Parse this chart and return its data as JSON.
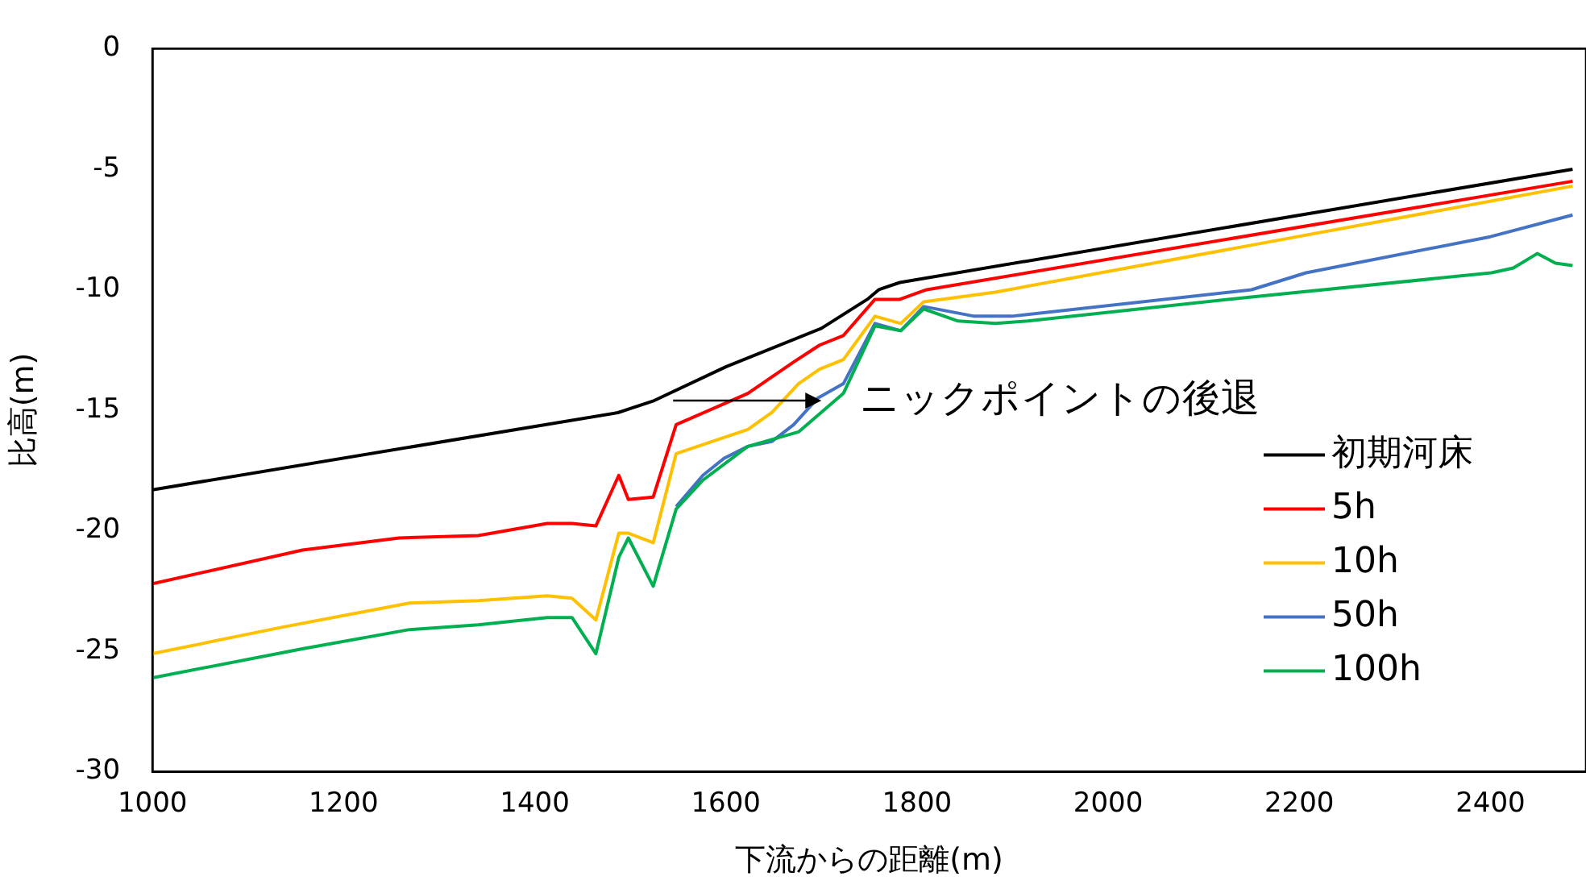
{
  "chart_data": {
    "type": "line",
    "xlabel": "下流からの距離(m)",
    "ylabel": "比高(m)",
    "xlim": [
      1000,
      2500
    ],
    "xticks": [
      1000,
      1200,
      1400,
      1600,
      1800,
      2000,
      2200,
      2400
    ],
    "ylim": [
      -30,
      0
    ],
    "yticks": [
      -30,
      -25,
      -20,
      -15,
      -10,
      -5,
      0
    ],
    "grid": false,
    "legend": "right",
    "marker": "none",
    "line_style": "solid",
    "annotations": [
      {
        "text": "ニックポイントの後退",
        "x": 1700,
        "y": -14.6
      }
    ],
    "series": [
      {
        "name": "初期河床",
        "color": "#000000",
        "x": [
          1000,
          1487,
          1525,
          1600,
          1700,
          1748,
          1760,
          1782,
          2486
        ],
        "values": [
          -18.3,
          -15.1,
          -14.6,
          -13.2,
          -11.6,
          -10.4,
          -10.0,
          -9.7,
          -5.0
        ]
      },
      {
        "name": "5h",
        "color": "#ff0000",
        "x": [
          1000,
          1157,
          1258,
          1341,
          1413,
          1439,
          1464,
          1488,
          1498,
          1524,
          1548,
          1623,
          1671,
          1698,
          1723,
          1756,
          1782,
          1810,
          2486
        ],
        "values": [
          -22.2,
          -20.8,
          -20.3,
          -20.2,
          -19.7,
          -19.7,
          -19.8,
          -17.7,
          -18.7,
          -18.6,
          -15.6,
          -14.3,
          -13.0,
          -12.3,
          -11.9,
          -10.4,
          -10.4,
          -10.0,
          -5.5
        ]
      },
      {
        "name": "10h",
        "color": "#ffc000",
        "x": [
          1000,
          1136,
          1269,
          1341,
          1413,
          1439,
          1464,
          1488,
          1498,
          1524,
          1548,
          1623,
          1648,
          1676,
          1698,
          1723,
          1756,
          1783,
          1807,
          1882,
          2157,
          2486
        ],
        "values": [
          -25.1,
          -24.0,
          -23.0,
          -22.9,
          -22.7,
          -22.8,
          -23.7,
          -20.1,
          -20.1,
          -20.5,
          -16.8,
          -15.8,
          -15.1,
          -13.9,
          -13.3,
          -12.9,
          -11.1,
          -11.4,
          -10.5,
          -10.1,
          -8.1,
          -5.7
        ]
      },
      {
        "name": "50h",
        "color": "#4472c4",
        "x": [
          1548,
          1576,
          1598,
          1623,
          1648,
          1671,
          1696,
          1723,
          1756,
          1783,
          1807,
          1860,
          1899,
          2150,
          2207,
          2400,
          2486
        ],
        "values": [
          -19.0,
          -17.7,
          -17.0,
          -16.5,
          -16.3,
          -15.6,
          -14.5,
          -13.9,
          -11.4,
          -11.7,
          -10.7,
          -11.1,
          -11.1,
          -10.0,
          -9.3,
          -7.8,
          -6.9
        ]
      },
      {
        "name": "100h",
        "color": "#00b050",
        "x": [
          1000,
          1157,
          1269,
          1341,
          1413,
          1439,
          1464,
          1488,
          1498,
          1524,
          1548,
          1576,
          1623,
          1676,
          1723,
          1756,
          1783,
          1807,
          1843,
          1882,
          1916,
          2150,
          2401,
          2424,
          2449,
          2468,
          2486
        ],
        "values": [
          -26.1,
          -24.9,
          -24.1,
          -23.9,
          -23.6,
          -23.6,
          -25.1,
          -21.1,
          -20.3,
          -22.3,
          -19.1,
          -17.9,
          -16.5,
          -15.9,
          -14.3,
          -11.5,
          -11.7,
          -10.8,
          -11.3,
          -11.4,
          -11.3,
          -10.3,
          -9.3,
          -9.1,
          -8.5,
          -8.9,
          -9.0
        ]
      }
    ]
  }
}
